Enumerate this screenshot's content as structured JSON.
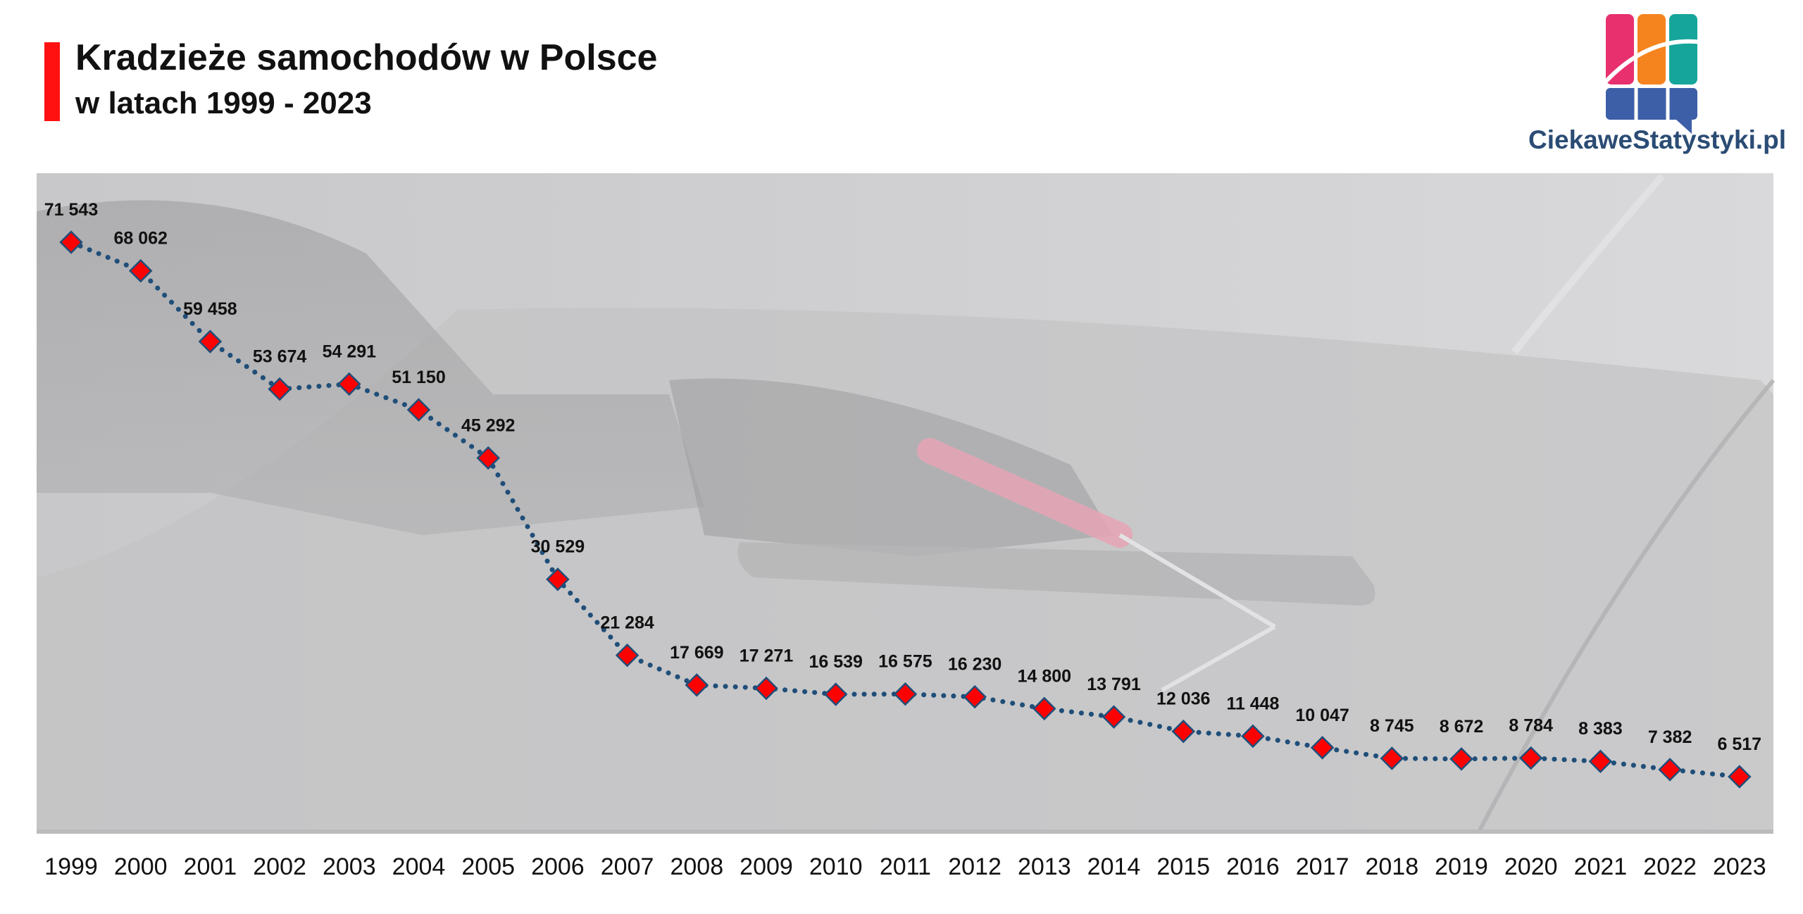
{
  "header": {
    "title": "Kradzieże samochodów w Polsce",
    "subtitle": "w latach 1999 - 2023"
  },
  "logo": {
    "text": "CiekaweStatystyki.pl",
    "icon": "bar-chart-logo-icon"
  },
  "colors": {
    "accent": "#ff1111",
    "line": "#1f4e79",
    "marker": "#ff0000",
    "logo_pink": "#e8306e",
    "logo_orange": "#f5841f",
    "logo_teal": "#15a59a",
    "logo_blue": "#3d5fa8",
    "logo_text": "#2b4c74"
  },
  "chart_data": {
    "type": "line",
    "title": "Kradzieże samochodów w Polsce",
    "subtitle": "w latach 1999 - 2023",
    "categories": [
      "1999",
      "2000",
      "2001",
      "2002",
      "2003",
      "2004",
      "2005",
      "2006",
      "2007",
      "2008",
      "2009",
      "2010",
      "2011",
      "2012",
      "2013",
      "2014",
      "2015",
      "2016",
      "2017",
      "2018",
      "2019",
      "2020",
      "2021",
      "2022",
      "2023"
    ],
    "values": [
      71543,
      68062,
      59458,
      53674,
      54291,
      51150,
      45292,
      30529,
      21284,
      17669,
      17271,
      16539,
      16575,
      16230,
      14800,
      13791,
      12036,
      11448,
      10047,
      8745,
      8672,
      8784,
      8383,
      7382,
      6517
    ],
    "labels": [
      "71 543",
      "68 062",
      "59 458",
      "53 674",
      "54 291",
      "51 150",
      "45 292",
      "30 529",
      "21 284",
      "17 669",
      "17 271",
      "16 539",
      "16 575",
      "16 230",
      "14 800",
      "13 791",
      "12 036",
      "11 448",
      "10 047",
      "8 745",
      "8 672",
      "8 784",
      "8 383",
      "7 382",
      "6 517"
    ],
    "line_style": "dotted",
    "marker": "diamond",
    "grid": false,
    "legend": "none",
    "background": "photo of a car door lock being picked, faded"
  }
}
